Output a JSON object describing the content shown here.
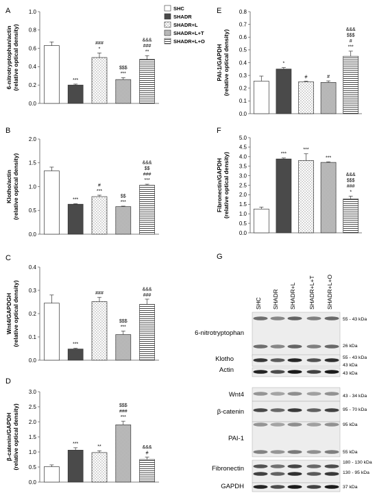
{
  "legend": [
    {
      "name": "SHC",
      "pattern": "white"
    },
    {
      "name": "SHADR",
      "pattern": "dark"
    },
    {
      "name": "SHADR+L",
      "pattern": "dots"
    },
    {
      "name": "SHADR+L+T",
      "pattern": "fine"
    },
    {
      "name": "SHADR+L+O",
      "pattern": "hlines"
    }
  ],
  "colors": {
    "dark": "#4a4a4a",
    "axis": "#555555"
  },
  "chart_data": [
    {
      "panel": "A",
      "type": "bar",
      "ylabel": [
        "6-nitrotryptophan/actin",
        "(relative optical density)"
      ],
      "ylim": [
        0,
        1.0
      ],
      "yticks": [
        "0.0",
        "0.2",
        "0.4",
        "0.6",
        "0.8",
        "1.0"
      ],
      "categories": [
        "SHC",
        "SHADR",
        "SHADR+L",
        "SHADR+L+T",
        "SHADR+L+O"
      ],
      "values": [
        0.63,
        0.2,
        0.5,
        0.26,
        0.48
      ],
      "errors": [
        0.04,
        0.01,
        0.05,
        0.02,
        0.04
      ],
      "significance": [
        [],
        [
          "***"
        ],
        [
          "###",
          "*"
        ],
        [
          "$$$",
          "***"
        ],
        [
          "&&&",
          "###",
          "**"
        ]
      ]
    },
    {
      "panel": "B",
      "type": "bar",
      "ylabel": [
        "Klotho/actin",
        "(relative optical density)"
      ],
      "ylim": [
        0,
        2.0
      ],
      "yticks": [
        "0.0",
        "0.5",
        "1.0",
        "1.5",
        "2.0"
      ],
      "categories": [
        "SHC",
        "SHADR",
        "SHADR+L",
        "SHADR+L+T",
        "SHADR+L+O"
      ],
      "values": [
        1.33,
        0.63,
        0.79,
        0.58,
        1.03
      ],
      "errors": [
        0.08,
        0.01,
        0.03,
        0.01,
        0.02
      ],
      "significance": [
        [],
        [
          "***"
        ],
        [
          "#",
          "***"
        ],
        [
          "$$",
          "***"
        ],
        [
          "&&&",
          "$$",
          "###",
          "***"
        ]
      ]
    },
    {
      "panel": "C",
      "type": "bar",
      "ylabel": [
        "Wnt4/GAPDGH",
        "(relative optical density)"
      ],
      "ylim": [
        0,
        0.4
      ],
      "yticks": [
        "0.0",
        "0.1",
        "0.2",
        "0.3",
        "0.4"
      ],
      "categories": [
        "SHC",
        "SHADR",
        "SHADR+L",
        "SHADR+L+T",
        "SHADR+L+O"
      ],
      "values": [
        0.245,
        0.048,
        0.252,
        0.11,
        0.24
      ],
      "errors": [
        0.035,
        0.003,
        0.018,
        0.015,
        0.022
      ],
      "significance": [
        [],
        [
          "***"
        ],
        [
          "###"
        ],
        [
          "$$$",
          "***"
        ],
        [
          "&&&",
          "###"
        ]
      ]
    },
    {
      "panel": "D",
      "type": "bar",
      "ylabel": [
        "β-catenin/GAPDH",
        "(relative optical density)"
      ],
      "ylim": [
        0,
        3.0
      ],
      "yticks": [
        "0.0",
        "0.5",
        "1.0",
        "1.5",
        "2.0",
        "2.5",
        "3.0"
      ],
      "categories": [
        "SHC",
        "SHADR",
        "SHADR+L",
        "SHADR+L+T",
        "SHADR+L+O"
      ],
      "values": [
        0.51,
        1.06,
        0.98,
        1.9,
        0.75
      ],
      "errors": [
        0.06,
        0.08,
        0.06,
        0.12,
        0.08
      ],
      "significance": [
        [],
        [
          "***"
        ],
        [
          "**"
        ],
        [
          "$$$",
          "###",
          "***"
        ],
        [
          "&&&",
          "#"
        ]
      ]
    },
    {
      "panel": "E",
      "type": "bar",
      "ylabel": [
        "PAI-1/GAPDH",
        "(relative optical density)"
      ],
      "ylim": [
        0,
        0.8
      ],
      "yticks": [
        "0.0",
        "0.1",
        "0.2",
        "0.3",
        "0.4",
        "0.5",
        "0.6",
        "0.7",
        "0.8"
      ],
      "categories": [
        "SHC",
        "SHADR",
        "SHADR+L",
        "SHADR+L+T",
        "SHADR+L+O"
      ],
      "values": [
        0.255,
        0.35,
        0.25,
        0.245,
        0.45
      ],
      "errors": [
        0.04,
        0.012,
        0.005,
        0.012,
        0.04
      ],
      "significance": [
        [],
        [
          "*"
        ],
        [
          "#"
        ],
        [
          "#"
        ],
        [
          "&&&",
          "$$$",
          "#",
          "***"
        ]
      ]
    },
    {
      "panel": "F",
      "type": "bar",
      "ylabel": [
        "Fibronectin/GAPDH",
        "(relative optical density)"
      ],
      "ylim": [
        0,
        5.0
      ],
      "yticks": [
        "0.0",
        "0.5",
        "1.0",
        "1.5",
        "2.0",
        "2.5",
        "3.0",
        "3.5",
        "4.0",
        "4.5",
        "5.0"
      ],
      "categories": [
        "SHC",
        "SHADR",
        "SHADR+L",
        "SHADR+L+T",
        "SHADR+L+O"
      ],
      "values": [
        1.25,
        3.88,
        3.8,
        3.7,
        1.78
      ],
      "errors": [
        0.1,
        0.05,
        0.35,
        0.03,
        0.15
      ],
      "significance": [
        [],
        [
          "***"
        ],
        [
          "***"
        ],
        [
          "***"
        ],
        [
          "&&&",
          "$$$",
          "###",
          "*"
        ]
      ]
    }
  ],
  "blot": {
    "panel": "G",
    "lanes": [
      "SHC",
      "SHADR",
      "SHADR+L",
      "SHADR+L+T",
      "SHADR+L+O"
    ],
    "labels": [
      {
        "text": "6-nitrotryptophan"
      },
      {
        "text": "Klotho"
      },
      {
        "text": "Actin"
      },
      {
        "text": "Wnt4"
      },
      {
        "text": "β-catenin"
      },
      {
        "text": "PAI-1"
      },
      {
        "text": "Fibronectin"
      },
      {
        "text": "GAPDH"
      }
    ],
    "kda": [
      "55 - 43 kDa",
      "26 kDa",
      "55 - 43 kDa",
      "43 kDa",
      "43 kDa",
      "43 - 34 kDa",
      "95 - 70 kDa",
      "95 kDa",
      "55 kDa",
      "180 - 130 kDa",
      "130 - 95 kDa",
      "37 kDa"
    ]
  }
}
